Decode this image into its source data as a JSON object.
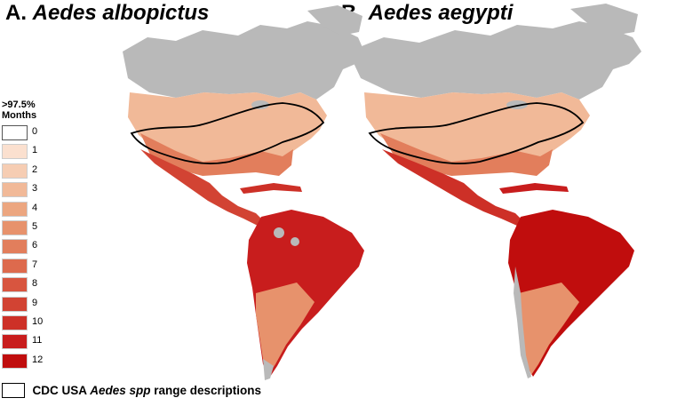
{
  "panels": [
    {
      "letter": "A.",
      "species": "Aedes albopictus"
    },
    {
      "letter": "B.",
      "species": "Aedes aegypti"
    }
  ],
  "legend": {
    "threshold": ">97.5%",
    "unit": "Months",
    "classes": [
      {
        "label": "0",
        "color": "#ffffff"
      },
      {
        "label": "1",
        "color": "#fbe0cf"
      },
      {
        "label": "2",
        "color": "#f6cdb3"
      },
      {
        "label": "3",
        "color": "#f1b998"
      },
      {
        "label": "4",
        "color": "#eca680"
      },
      {
        "label": "5",
        "color": "#e7926c"
      },
      {
        "label": "6",
        "color": "#e27e5c"
      },
      {
        "label": "7",
        "color": "#dd6a4d"
      },
      {
        "label": "8",
        "color": "#d8553f"
      },
      {
        "label": "9",
        "color": "#d24333"
      },
      {
        "label": "10",
        "color": "#cd3027"
      },
      {
        "label": "11",
        "color": "#c81d1d"
      },
      {
        "label": "12",
        "color": "#c00d0d"
      }
    ]
  },
  "range_key": {
    "prefix": "CDC USA ",
    "italic": "Aedes spp",
    "suffix": " range descriptions"
  },
  "colors": {
    "land_no_data": "#b9b9b9",
    "range_outline": "#000000"
  }
}
